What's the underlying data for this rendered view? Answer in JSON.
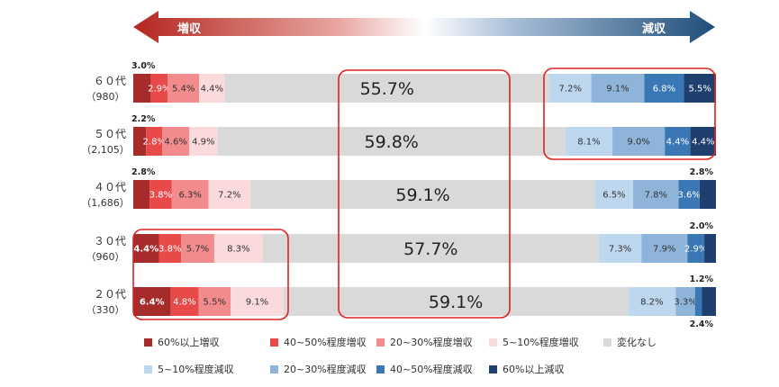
{
  "header": {
    "increase_label": "増収",
    "decrease_label": "減収"
  },
  "chart_data": {
    "type": "bar",
    "orientation": "horizontal",
    "stacked": true,
    "scale": "percent",
    "categories": [
      {
        "label": "６０代",
        "n": "（980）"
      },
      {
        "label": "５０代",
        "n": "（2,105）"
      },
      {
        "label": "４０代",
        "n": "（1,686）"
      },
      {
        "label": "３０代",
        "n": "（960）"
      },
      {
        "label": "２０代",
        "n": "（330）"
      }
    ],
    "series": [
      {
        "name": "60%以上増収",
        "color": "#a62b2b",
        "values": [
          3.0,
          2.2,
          2.8,
          4.4,
          6.4
        ]
      },
      {
        "name": "40~50%程度増収",
        "color": "#e84a4a",
        "values": [
          2.9,
          2.8,
          3.8,
          3.8,
          4.8
        ]
      },
      {
        "name": "20~30%程度増収",
        "color": "#f28b8b",
        "values": [
          5.4,
          4.6,
          6.3,
          5.7,
          5.5
        ]
      },
      {
        "name": "5~10%程度増収",
        "color": "#fadada",
        "values": [
          4.4,
          4.9,
          7.2,
          8.3,
          9.1
        ]
      },
      {
        "name": "変化なし",
        "color": "#d9d9d9",
        "values": [
          55.7,
          59.8,
          59.1,
          57.7,
          59.1
        ]
      },
      {
        "name": "5~10%程度減収",
        "color": "#bdd7ee",
        "values": [
          7.2,
          8.1,
          6.5,
          7.3,
          8.2
        ]
      },
      {
        "name": "20~30%程度減収",
        "color": "#8fb4d9",
        "values": [
          9.1,
          9.0,
          7.8,
          7.9,
          3.3
        ]
      },
      {
        "name": "40~50%程度減収",
        "color": "#3a78b5",
        "values": [
          6.8,
          4.4,
          3.6,
          2.9,
          1.2
        ]
      },
      {
        "name": "60%以上減収",
        "color": "#1f3f6e",
        "values": [
          5.5,
          4.4,
          2.8,
          2.0,
          2.4
        ]
      }
    ],
    "value_labels": [
      [
        "3.0%",
        "2.9%",
        "5.4%",
        "4.4%",
        "55.7%",
        "7.2%",
        "9.1%",
        "6.8%",
        "5.5%"
      ],
      [
        "2.2%",
        "2.8%",
        "4.6%",
        "4.9%",
        "59.8%",
        "8.1%",
        "9.0%",
        "4.4%",
        "4.4%"
      ],
      [
        "2.8%",
        "3.8%",
        "6.3%",
        "7.2%",
        "59.1%",
        "6.5%",
        "7.8%",
        "3.6%",
        "2.8%"
      ],
      [
        "4.4%",
        "3.8%",
        "5.7%",
        "8.3%",
        "57.7%",
        "7.3%",
        "7.9%",
        "2.9%",
        "2.0%"
      ],
      [
        "6.4%",
        "4.8%",
        "5.5%",
        "9.1%",
        "59.1%",
        "8.2%",
        "3.3%",
        "1.2%",
        "2.4%"
      ]
    ]
  }
}
